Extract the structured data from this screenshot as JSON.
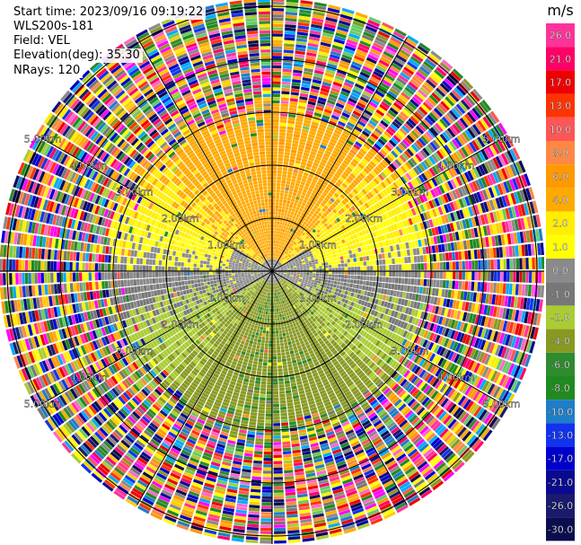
{
  "info": {
    "start_time": "Start time: 2023/09/16 09:19:22",
    "instrument": "WLS200s-181",
    "field": "Field: VEL",
    "elevation": "Elevation(deg): 35.30",
    "nrays": "NRays: 120"
  },
  "chart_data": {
    "type": "heatmap",
    "projection": "polar",
    "field": "VEL",
    "units": "m/s",
    "elevation_deg": 35.3,
    "nrays": 120,
    "range_rings_km": [
      1.0,
      2.0,
      3.0,
      4.0,
      5.0
    ],
    "ring_labels": [
      "1.00km",
      "2.00km",
      "3.00km",
      "4.00km",
      "5.00km"
    ],
    "max_range_km": 5.1,
    "spokes_deg": [
      0,
      30,
      60,
      90,
      120,
      150,
      180,
      210,
      240,
      270,
      300,
      330
    ],
    "dominant_pattern": {
      "toward_north": "positive 2 to 6 m/s (yellow-orange)",
      "toward_south": "negative -2 to -6 m/s (green)",
      "beyond_3km": "noisy, all values"
    },
    "colorbar": {
      "title": "m/s",
      "ticks": [
        "26.0",
        "21.0",
        "17.0",
        "13.0",
        "10.0",
        "8.0",
        "6.0",
        "4.0",
        "2.0",
        "1.0",
        "0.0",
        "-1.0",
        "-2.0",
        "-4.0",
        "-6.0",
        "-8.0",
        "-10.0",
        "-13.0",
        "-17.0",
        "-21.0",
        "-26.0",
        "-30.0"
      ],
      "colors": [
        "#ff3399",
        "#ff0066",
        "#ee0000",
        "#ff3300",
        "#ff5555",
        "#ff8844",
        "#ff9900",
        "#ffaa00",
        "#ffee00",
        "#ffff00",
        "#8a8a8a",
        "#777777",
        "#aacc33",
        "#889922",
        "#2e8b2e",
        "#1f8a1f",
        "#1e7ec8",
        "#1133ee",
        "#0000cc",
        "#0a0a90",
        "#1a1a6e",
        "#0c0c50"
      ]
    }
  }
}
